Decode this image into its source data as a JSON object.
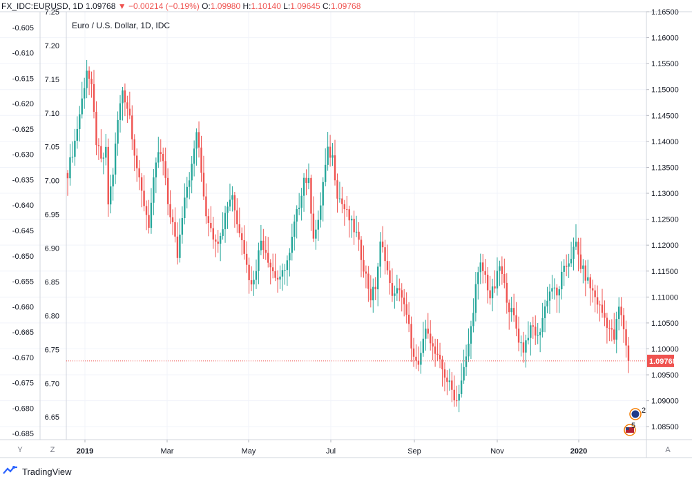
{
  "header": {
    "symbol": "FX_IDC:EURUSD, 1D",
    "last": "1.09768",
    "change": "−0.00214 (−0.19%)",
    "o_label": "O:",
    "o_value": "1.09980",
    "h_label": "H:",
    "h_value": "1.10140",
    "l_label": "L:",
    "l_value": "1.09645",
    "c_label": "C:",
    "c_value": "1.09768",
    "direction_icon": "triangle-down-icon"
  },
  "chart_title": "Euro / U.S. Dollar, 1D, IDC",
  "axis_buttons": {
    "y": "Y",
    "z": "Z",
    "a": "A"
  },
  "footer": {
    "brand": "TradingView",
    "logo_icon": "tradingview-logo-icon"
  },
  "event_badges": [
    {
      "icon": "flag-eu-icon",
      "count": "2"
    },
    {
      "icon": "flag-us-icon",
      "count": "5"
    }
  ],
  "colors": {
    "up": "#26a69a",
    "down": "#ef5350",
    "grid": "#f0f3fa",
    "axis": "#d1d4dc"
  },
  "chart_data": {
    "type": "candlestick",
    "title": "Euro / U.S. Dollar, 1D, IDC",
    "x_tick_labels": [
      "2019",
      "Mar",
      "May",
      "Jul",
      "Sep",
      "Nov",
      "2020"
    ],
    "right_axis": {
      "labels": [
        "1.16500",
        "1.16000",
        "1.15500",
        "1.15000",
        "1.14500",
        "1.14000",
        "1.13500",
        "1.13000",
        "1.12500",
        "1.12000",
        "1.11500",
        "1.11000",
        "1.10500",
        "1.10000",
        "1.09500",
        "1.09000",
        "1.08500"
      ],
      "range": [
        1.0825,
        1.165
      ]
    },
    "left_axis_inner": {
      "labels": [
        "7.25",
        "7.20",
        "7.15",
        "7.10",
        "7.05",
        "7.00",
        "6.95",
        "6.90",
        "6.85",
        "6.80",
        "6.75",
        "6.70",
        "6.65"
      ],
      "range": [
        6.6165,
        7.25
      ]
    },
    "left_axis_outer": {
      "labels": [
        "-0.605",
        "-0.610",
        "-0.615",
        "-0.620",
        "-0.625",
        "-0.630",
        "-0.635",
        "-0.640",
        "-0.645",
        "-0.650",
        "-0.655",
        "-0.660",
        "-0.665",
        "-0.670",
        "-0.675",
        "-0.680",
        "-0.685"
      ],
      "range": [
        -0.6862,
        -0.6019
      ]
    },
    "last_price": "1.09768",
    "last_price_value": 1.09768,
    "keypoints": [
      [
        0,
        1.134
      ],
      [
        3,
        1.14
      ],
      [
        6,
        1.148
      ],
      [
        8,
        1.154
      ],
      [
        10,
        1.15
      ],
      [
        12,
        1.14
      ],
      [
        14,
        1.136
      ],
      [
        16,
        1.138
      ],
      [
        17,
        1.128
      ],
      [
        19,
        1.134
      ],
      [
        21,
        1.144
      ],
      [
        23,
        1.15
      ],
      [
        26,
        1.145
      ],
      [
        28,
        1.138
      ],
      [
        30,
        1.132
      ],
      [
        32,
        1.128
      ],
      [
        34,
        1.124
      ],
      [
        36,
        1.132
      ],
      [
        38,
        1.138
      ],
      [
        40,
        1.136
      ],
      [
        42,
        1.128
      ],
      [
        44,
        1.124
      ],
      [
        46,
        1.118
      ],
      [
        49,
        1.13
      ],
      [
        52,
        1.135
      ],
      [
        54,
        1.142
      ],
      [
        56,
        1.134
      ],
      [
        58,
        1.126
      ],
      [
        60,
        1.124
      ],
      [
        62,
        1.12
      ],
      [
        65,
        1.124
      ],
      [
        67,
        1.128
      ],
      [
        69,
        1.13
      ],
      [
        71,
        1.124
      ],
      [
        73,
        1.122
      ],
      [
        75,
        1.116
      ],
      [
        77,
        1.112
      ],
      [
        79,
        1.116
      ],
      [
        81,
        1.121
      ],
      [
        83,
        1.119
      ],
      [
        85,
        1.116
      ],
      [
        87,
        1.114
      ],
      [
        89,
        1.113
      ],
      [
        91,
        1.116
      ],
      [
        93,
        1.118
      ],
      [
        95,
        1.124
      ],
      [
        97,
        1.128
      ],
      [
        99,
        1.133
      ],
      [
        101,
        1.132
      ],
      [
        103,
        1.122
      ],
      [
        105,
        1.124
      ],
      [
        107,
        1.132
      ],
      [
        109,
        1.138
      ],
      [
        111,
        1.137
      ],
      [
        113,
        1.13
      ],
      [
        115,
        1.128
      ],
      [
        117,
        1.126
      ],
      [
        119,
        1.124
      ],
      [
        121,
        1.122
      ],
      [
        123,
        1.118
      ],
      [
        125,
        1.114
      ],
      [
        127,
        1.11
      ],
      [
        129,
        1.112
      ],
      [
        131,
        1.12
      ],
      [
        133,
        1.118
      ],
      [
        135,
        1.112
      ],
      [
        137,
        1.11
      ],
      [
        139,
        1.112
      ],
      [
        141,
        1.108
      ],
      [
        143,
        1.104
      ],
      [
        145,
        1.098
      ],
      [
        147,
        1.096
      ],
      [
        149,
        1.102
      ],
      [
        151,
        1.104
      ],
      [
        153,
        1.1
      ],
      [
        155,
        1.098
      ],
      [
        157,
        1.096
      ],
      [
        159,
        1.094
      ],
      [
        161,
        1.092
      ],
      [
        163,
        1.09
      ],
      [
        165,
        1.094
      ],
      [
        167,
        1.098
      ],
      [
        169,
        1.104
      ],
      [
        171,
        1.112
      ],
      [
        173,
        1.116
      ],
      [
        175,
        1.114
      ],
      [
        177,
        1.11
      ],
      [
        179,
        1.112
      ],
      [
        181,
        1.116
      ],
      [
        183,
        1.112
      ],
      [
        185,
        1.108
      ],
      [
        187,
        1.106
      ],
      [
        189,
        1.102
      ],
      [
        191,
        1.1
      ],
      [
        193,
        1.103
      ],
      [
        195,
        1.104
      ],
      [
        197,
        1.102
      ],
      [
        199,
        1.106
      ],
      [
        201,
        1.11
      ],
      [
        203,
        1.112
      ],
      [
        205,
        1.11
      ],
      [
        207,
        1.114
      ],
      [
        209,
        1.116
      ],
      [
        211,
        1.118
      ],
      [
        213,
        1.12
      ],
      [
        215,
        1.116
      ],
      [
        217,
        1.114
      ],
      [
        219,
        1.112
      ],
      [
        221,
        1.11
      ],
      [
        223,
        1.108
      ],
      [
        225,
        1.106
      ],
      [
        227,
        1.104
      ],
      [
        229,
        1.102
      ],
      [
        231,
        1.108
      ],
      [
        233,
        1.104
      ],
      [
        235,
        1.098
      ]
    ]
  }
}
